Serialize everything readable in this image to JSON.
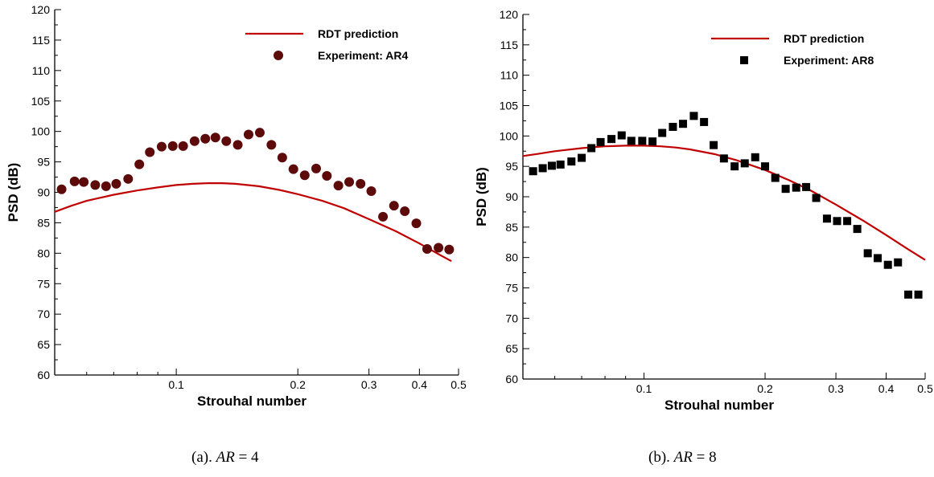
{
  "chart_data": [
    {
      "type": "line+scatter",
      "caption": {
        "prefix": "(a).",
        "var": "AR",
        "eq": "=",
        "value": "4"
      },
      "xlabel": "Strouhal number",
      "ylabel": "PSD (dB)",
      "xscale": "log",
      "xlim": [
        0.05,
        0.5
      ],
      "ylim": [
        60,
        120
      ],
      "xticks": [
        0.1,
        0.2,
        0.3,
        0.4,
        0.5
      ],
      "xtick_labels": [
        "0.1",
        "0.2",
        "0.3",
        "0.4",
        "0.5"
      ],
      "yticks": [
        60,
        65,
        70,
        75,
        80,
        85,
        90,
        95,
        100,
        105,
        110,
        115,
        120
      ],
      "legend_position": "top-right",
      "series": [
        {
          "name": "RDT prediction",
          "kind": "line",
          "color": "#c00000",
          "x": [
            0.05,
            0.055,
            0.06,
            0.07,
            0.08,
            0.09,
            0.1,
            0.11,
            0.12,
            0.13,
            0.14,
            0.16,
            0.18,
            0.2,
            0.23,
            0.26,
            0.3,
            0.35,
            0.4,
            0.45,
            0.48
          ],
          "y": [
            86.8,
            87.8,
            88.6,
            89.6,
            90.3,
            90.8,
            91.2,
            91.4,
            91.5,
            91.5,
            91.4,
            91.0,
            90.4,
            89.7,
            88.6,
            87.4,
            85.6,
            83.6,
            81.6,
            79.7,
            78.7
          ]
        },
        {
          "name": "Experiment: AR4",
          "kind": "scatter",
          "marker": "circle",
          "color": "#5c0a0a",
          "x": [
            0.052,
            0.056,
            0.059,
            0.063,
            0.067,
            0.071,
            0.076,
            0.081,
            0.086,
            0.092,
            0.098,
            0.104,
            0.111,
            0.118,
            0.125,
            0.133,
            0.142,
            0.151,
            0.161,
            0.172,
            0.183,
            0.195,
            0.208,
            0.222,
            0.236,
            0.252,
            0.268,
            0.286,
            0.304,
            0.325,
            0.346,
            0.368,
            0.393,
            0.418,
            0.446,
            0.474
          ],
          "y": [
            90.5,
            91.8,
            91.7,
            91.2,
            91.0,
            91.4,
            92.2,
            94.6,
            96.6,
            97.5,
            97.6,
            97.6,
            98.4,
            98.8,
            99.0,
            98.4,
            97.8,
            99.5,
            99.8,
            97.8,
            95.7,
            93.8,
            92.8,
            93.9,
            92.7,
            91.1,
            91.7,
            91.4,
            90.2,
            86.0,
            87.8,
            86.9,
            84.9,
            80.7,
            80.9,
            80.6
          ]
        }
      ],
      "extra_points_note": ""
    },
    {
      "type": "line+scatter",
      "caption": {
        "prefix": "(b).",
        "var": "AR",
        "eq": "=",
        "value": "8"
      },
      "xlabel": "Strouhal number",
      "ylabel": "PSD (dB)",
      "xscale": "log",
      "xlim": [
        0.05,
        0.5
      ],
      "ylim": [
        60,
        120
      ],
      "xticks": [
        0.1,
        0.2,
        0.3,
        0.4,
        0.5
      ],
      "xtick_labels": [
        "0.1",
        "0.2",
        "0.3",
        "0.4",
        "0.5"
      ],
      "yticks": [
        60,
        65,
        70,
        75,
        80,
        85,
        90,
        95,
        100,
        105,
        110,
        115,
        120
      ],
      "legend_position": "top-right",
      "series": [
        {
          "name": "RDT prediction",
          "kind": "line",
          "color": "#c00000",
          "x": [
            0.05,
            0.055,
            0.06,
            0.07,
            0.08,
            0.09,
            0.1,
            0.11,
            0.12,
            0.13,
            0.15,
            0.17,
            0.2,
            0.23,
            0.26,
            0.3,
            0.35,
            0.4,
            0.45,
            0.5
          ],
          "y": [
            96.7,
            97.1,
            97.5,
            98.0,
            98.3,
            98.4,
            98.4,
            98.3,
            98.1,
            97.8,
            97.0,
            96.0,
            94.4,
            92.7,
            91.0,
            88.7,
            86.1,
            83.7,
            81.5,
            79.6
          ]
        },
        {
          "name": "Experiment: AR8",
          "kind": "scatter",
          "marker": "square",
          "color": "#000000",
          "x": [
            0.053,
            0.056,
            0.059,
            0.062,
            0.066,
            0.07,
            0.074,
            0.078,
            0.083,
            0.088,
            0.093,
            0.099,
            0.105,
            0.111,
            0.118,
            0.125,
            0.133,
            0.141,
            0.149,
            0.158,
            0.168,
            0.178,
            0.189,
            0.2,
            0.212,
            0.225,
            0.239,
            0.253,
            0.268,
            0.285,
            0.302,
            0.32,
            0.339,
            0.36,
            0.381,
            0.404,
            0.428,
            0.454,
            0.481
          ],
          "y": [
            94.2,
            94.7,
            95.1,
            95.3,
            95.8,
            96.4,
            98.0,
            99.0,
            99.5,
            100.1,
            99.2,
            99.2,
            99.1,
            100.5,
            101.5,
            102.0,
            103.3,
            102.3,
            98.5,
            96.3,
            95.0,
            95.5,
            96.5,
            95.0,
            93.1,
            91.3,
            91.5,
            91.6,
            89.8,
            86.4,
            86.0,
            86.0,
            84.7,
            80.7,
            79.9,
            78.8,
            79.2,
            73.9,
            73.9
          ]
        }
      ]
    }
  ]
}
